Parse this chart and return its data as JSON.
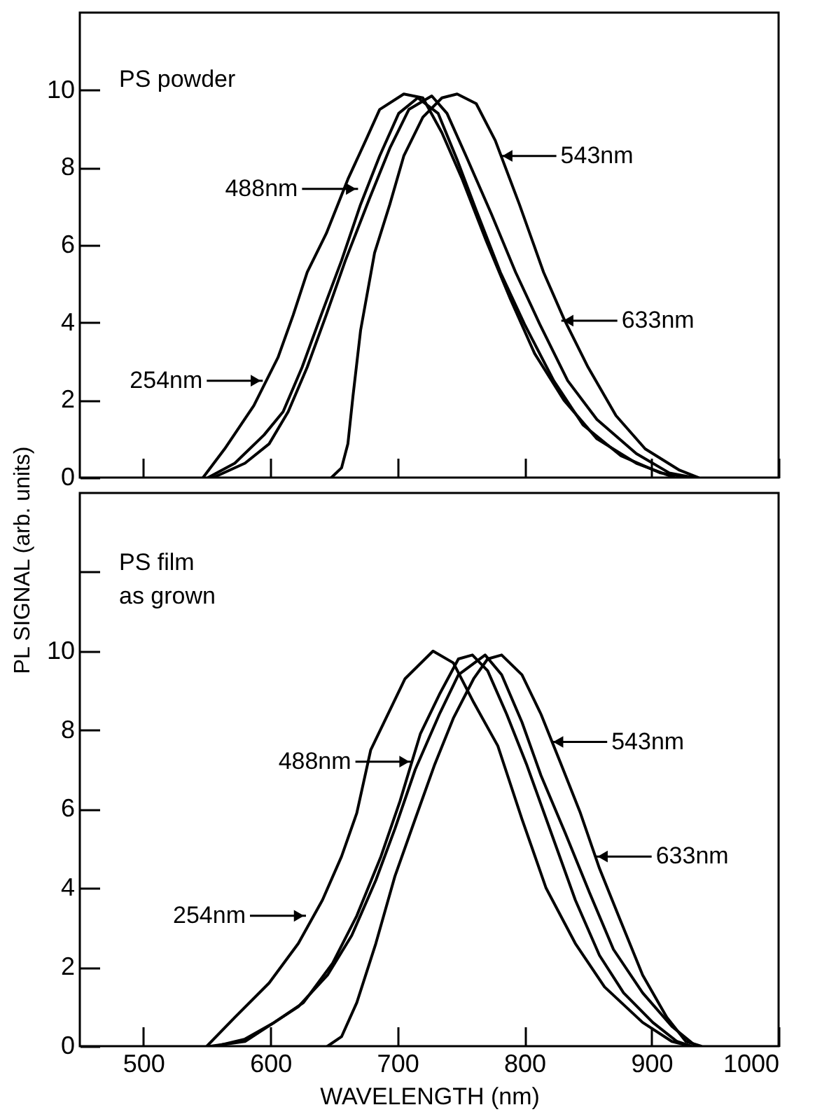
{
  "chart_data": [
    {
      "type": "line",
      "ylabel": "PL SIGNAL (arb. units)",
      "xlim": [
        450,
        1000
      ],
      "xticks": [
        500,
        600,
        700,
        800,
        900,
        1000
      ],
      "ylim": [
        0,
        12
      ],
      "yticks": [
        0,
        2,
        4,
        6,
        8,
        10
      ],
      "tick_labels": "y",
      "grid": false,
      "annotations": [
        "PS powder",
        {
          "text": "488nm",
          "x": 669,
          "y": 7.45
        },
        {
          "text": "543nm",
          "x": 781,
          "y": 8.3
        },
        {
          "text": "633nm",
          "x": 829,
          "y": 4.05
        },
        {
          "text": "254nm",
          "x": 594,
          "y": 2.5
        }
      ],
      "series": [
        {
          "color": "#000000",
          "x": [
            547,
            564,
            587,
            606,
            618,
            629,
            644,
            661,
            675,
            686,
            705,
            720,
            735,
            751,
            770,
            789,
            808,
            831,
            857,
            888,
            918
          ],
          "values": [
            0,
            0.74,
            1.86,
            3.1,
            4.2,
            5.3,
            6.3,
            7.7,
            8.7,
            9.5,
            9.9,
            9.8,
            8.9,
            7.7,
            6.1,
            4.6,
            3.2,
            2.0,
            1.0,
            0.37,
            0
          ]
        },
        {
          "color": "#000000",
          "x": [
            551,
            572,
            595,
            610,
            625,
            640,
            656,
            671,
            686,
            701,
            716,
            732,
            747,
            762,
            781,
            800,
            823,
            846,
            876,
            907,
            930
          ],
          "values": [
            0,
            0.37,
            1.1,
            1.7,
            2.85,
            4.2,
            5.6,
            7.05,
            8.3,
            9.4,
            9.8,
            9.4,
            8.2,
            6.9,
            5.3,
            3.96,
            2.5,
            1.36,
            0.56,
            0.12,
            0
          ]
        },
        {
          "color": "#000000",
          "x": [
            555,
            580,
            599,
            614,
            629,
            644,
            659,
            678,
            694,
            709,
            727,
            739,
            754,
            774,
            793,
            812,
            834,
            857,
            888,
            914,
            933
          ],
          "values": [
            0,
            0.37,
            0.87,
            1.7,
            2.85,
            4.2,
            5.6,
            7.2,
            8.5,
            9.5,
            9.85,
            9.4,
            8.3,
            6.8,
            5.3,
            3.96,
            2.5,
            1.5,
            0.62,
            0.12,
            0
          ]
        },
        {
          "color": "#000000",
          "x": [
            648,
            656,
            661,
            665,
            671,
            682,
            694,
            705,
            720,
            735,
            747,
            762,
            777,
            796,
            815,
            831,
            850,
            872,
            895,
            922,
            937
          ],
          "values": [
            0,
            0.25,
            0.87,
            2.1,
            3.8,
            5.8,
            7.05,
            8.3,
            9.3,
            9.8,
            9.9,
            9.65,
            8.7,
            7.05,
            5.3,
            4.1,
            2.85,
            1.6,
            0.74,
            0.19,
            0
          ]
        }
      ]
    },
    {
      "type": "line",
      "xlabel": "WAVELENGTH (nm)",
      "xlim": [
        450,
        1000
      ],
      "xticks": [
        500,
        600,
        700,
        800,
        900,
        1000
      ],
      "ylim": [
        0,
        14
      ],
      "yticks": [
        0,
        2,
        4,
        6,
        8,
        10,
        {
          "value": 12,
          "label": null
        }
      ],
      "grid": false,
      "annotations": [
        "PS film\nas grown",
        {
          "text": "488nm",
          "x": 711,
          "y": 7.2
        },
        {
          "text": "543nm",
          "x": 821,
          "y": 7.7
        },
        {
          "text": "633nm",
          "x": 856,
          "y": 4.8
        },
        {
          "text": "254nm",
          "x": 628,
          "y": 3.3
        }
      ],
      "series": [
        {
          "color": "#000000",
          "x": [
            550,
            572,
            599,
            622,
            641,
            656,
            668,
            679,
            691,
            706,
            728,
            744,
            760,
            779,
            798,
            817,
            840,
            863,
            893,
            916,
            931
          ],
          "values": [
            0,
            0.73,
            1.6,
            2.6,
            3.7,
            4.8,
            5.9,
            7.5,
            8.3,
            9.3,
            10.0,
            9.7,
            8.7,
            7.6,
            5.75,
            4.0,
            2.6,
            1.5,
            0.6,
            0.12,
            0
          ]
        },
        {
          "color": "#000000",
          "x": [
            553,
            580,
            603,
            626,
            649,
            668,
            687,
            702,
            718,
            733,
            748,
            759,
            771,
            786,
            802,
            821,
            840,
            859,
            878,
            901,
            920,
            931
          ],
          "values": [
            0,
            0.12,
            0.6,
            1.1,
            2.1,
            3.3,
            4.8,
            6.2,
            7.9,
            8.9,
            9.8,
            9.9,
            9.5,
            8.4,
            7.1,
            5.4,
            3.7,
            2.3,
            1.35,
            0.6,
            0.12,
            0
          ]
        },
        {
          "color": "#000000",
          "x": [
            557,
            580,
            603,
            622,
            645,
            664,
            683,
            698,
            714,
            733,
            748,
            769,
            782,
            798,
            813,
            832,
            851,
            870,
            893,
            916,
            935
          ],
          "values": [
            0,
            0.18,
            0.6,
            1.0,
            1.8,
            2.8,
            4.2,
            5.5,
            7.0,
            8.4,
            9.4,
            9.9,
            9.4,
            8.2,
            6.85,
            5.4,
            3.9,
            2.45,
            1.35,
            0.5,
            0
          ]
        },
        {
          "color": "#000000",
          "x": [
            645,
            656,
            668,
            683,
            698,
            714,
            729,
            744,
            760,
            771,
            782,
            798,
            813,
            828,
            844,
            859,
            874,
            893,
            912,
            927,
            939
          ],
          "values": [
            0,
            0.24,
            1.1,
            2.6,
            4.3,
            5.75,
            7.1,
            8.3,
            9.3,
            9.8,
            9.9,
            9.4,
            8.4,
            7.2,
            5.9,
            4.5,
            3.3,
            1.8,
            0.73,
            0.12,
            0
          ]
        }
      ]
    }
  ]
}
